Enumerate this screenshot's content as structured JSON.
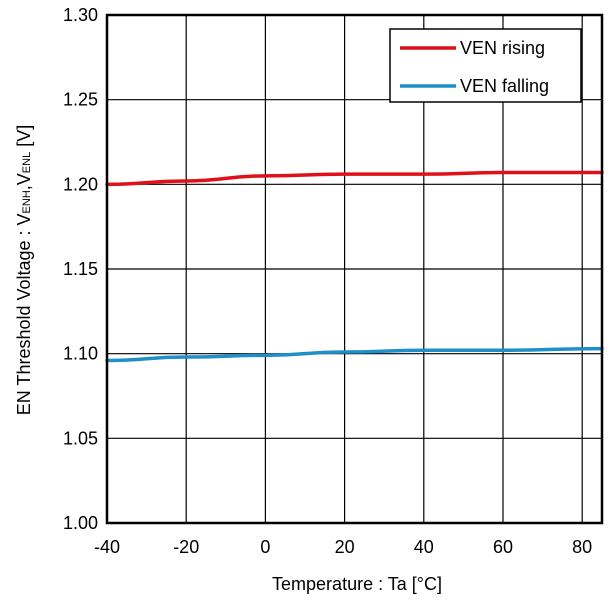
{
  "chart_data": {
    "type": "line",
    "title": "",
    "xlabel": "Temperature : Ta [°C]",
    "ylabel_main": "EN Threshold Voltage : V",
    "ylabel_sub1": "ENH",
    "ylabel_sep": ",V",
    "ylabel_sub2": "ENL",
    "ylabel_unit": " [V]",
    "xlim": [
      -40,
      85
    ],
    "ylim": [
      1.0,
      1.3
    ],
    "xticks": [
      -40,
      -20,
      0,
      20,
      40,
      60,
      80
    ],
    "xtick_labels": [
      "-40",
      "-20",
      "0",
      "20",
      "40",
      "60",
      "80"
    ],
    "yticks": [
      1.0,
      1.05,
      1.1,
      1.15,
      1.2,
      1.25,
      1.3
    ],
    "ytick_labels": [
      "1.00",
      "1.05",
      "1.10",
      "1.15",
      "1.20",
      "1.25",
      "1.30"
    ],
    "grid": true,
    "legend_position": "top-right",
    "series": [
      {
        "name": "VEN rising",
        "color": "#e0101a",
        "x": [
          -40,
          -20,
          0,
          20,
          40,
          60,
          85
        ],
        "y": [
          1.2,
          1.202,
          1.205,
          1.206,
          1.206,
          1.207,
          1.207
        ]
      },
      {
        "name": "VEN falling",
        "color": "#1f8fc8",
        "x": [
          -40,
          -20,
          0,
          20,
          40,
          60,
          85
        ],
        "y": [
          1.096,
          1.098,
          1.099,
          1.101,
          1.102,
          1.102,
          1.103
        ]
      }
    ]
  }
}
